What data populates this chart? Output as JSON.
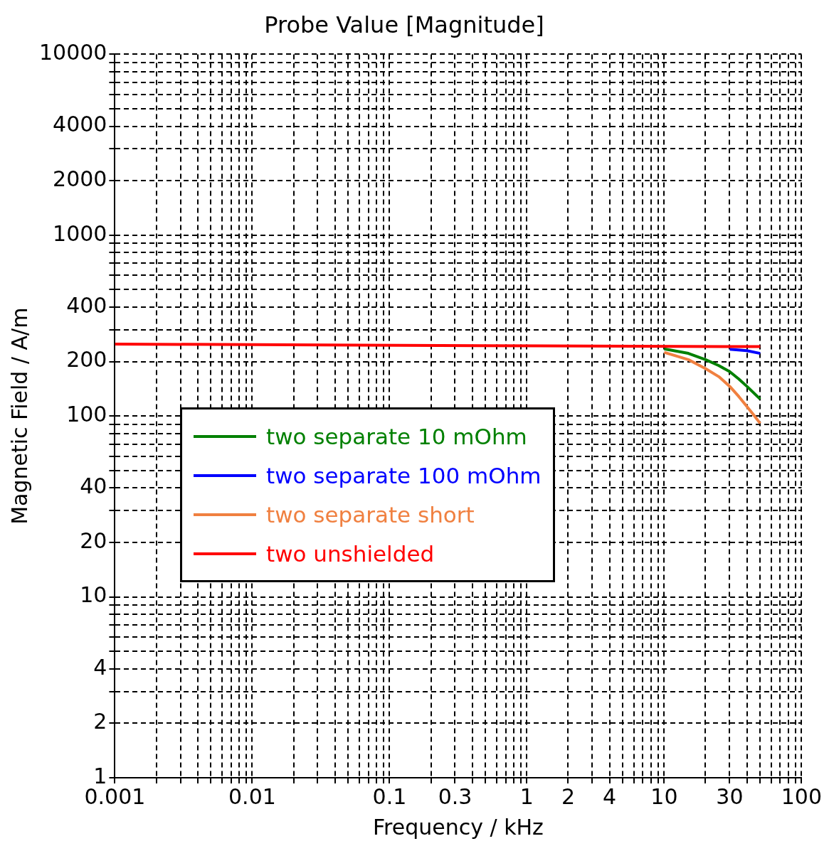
{
  "chart_data": {
    "type": "line",
    "title": "Probe Value [Magnitude]",
    "xlabel": "Frequency / kHz",
    "ylabel": "Magnetic Field / A/m",
    "log": "xy",
    "grid": true,
    "line_style": "solid",
    "marker": "none",
    "legend": "left",
    "xlim": [
      0.001,
      100
    ],
    "ylim": [
      1,
      10000
    ],
    "xticks": [
      0.001,
      {
        "value": 0.002,
        "label": null
      },
      {
        "value": 0.003,
        "label": null
      },
      {
        "value": 0.004,
        "label": null
      },
      {
        "value": 0.005,
        "label": null
      },
      {
        "value": 0.006,
        "label": null
      },
      {
        "value": 0.007,
        "label": null
      },
      {
        "value": 0.008,
        "label": null
      },
      {
        "value": 0.009,
        "label": null
      },
      0.01,
      {
        "value": 0.02,
        "label": null
      },
      {
        "value": 0.03,
        "label": null
      },
      {
        "value": 0.04,
        "label": null
      },
      {
        "value": 0.05,
        "label": null
      },
      {
        "value": 0.06,
        "label": null
      },
      {
        "value": 0.07,
        "label": null
      },
      {
        "value": 0.08,
        "label": null
      },
      {
        "value": 0.09,
        "label": null
      },
      0.1,
      {
        "value": 0.2,
        "label": null
      },
      0.3,
      {
        "value": 0.4,
        "label": null
      },
      {
        "value": 0.5,
        "label": null
      },
      {
        "value": 0.6,
        "label": null
      },
      {
        "value": 0.7,
        "label": null
      },
      {
        "value": 0.8,
        "label": null
      },
      {
        "value": 0.9,
        "label": null
      },
      1,
      2,
      {
        "value": 3,
        "label": null
      },
      4,
      {
        "value": 5,
        "label": null
      },
      {
        "value": 6,
        "label": null
      },
      {
        "value": 7,
        "label": null
      },
      {
        "value": 8,
        "label": null
      },
      {
        "value": 9,
        "label": null
      },
      10,
      {
        "value": 20,
        "label": null
      },
      30,
      {
        "value": 40,
        "label": null
      },
      {
        "value": 50,
        "label": null
      },
      {
        "value": 60,
        "label": null
      },
      {
        "value": 70,
        "label": null
      },
      {
        "value": 80,
        "label": null
      },
      {
        "value": 90,
        "label": null
      },
      100
    ],
    "yticks": [
      1,
      2,
      {
        "value": 3,
        "label": null
      },
      4,
      {
        "value": 5,
        "label": null
      },
      {
        "value": 6,
        "label": null
      },
      {
        "value": 7,
        "label": null
      },
      {
        "value": 8,
        "label": null
      },
      {
        "value": 9,
        "label": null
      },
      10,
      20,
      {
        "value": 30,
        "label": null
      },
      40,
      {
        "value": 50,
        "label": null
      },
      {
        "value": 60,
        "label": null
      },
      {
        "value": 70,
        "label": null
      },
      {
        "value": 80,
        "label": null
      },
      {
        "value": 90,
        "label": null
      },
      100,
      200,
      {
        "value": 300,
        "label": null
      },
      400,
      {
        "value": 500,
        "label": null
      },
      {
        "value": 600,
        "label": null
      },
      {
        "value": 700,
        "label": null
      },
      {
        "value": 800,
        "label": null
      },
      {
        "value": 900,
        "label": null
      },
      1000,
      2000,
      {
        "value": 3000,
        "label": null
      },
      4000,
      {
        "value": 5000,
        "label": null
      },
      {
        "value": 6000,
        "label": null
      },
      {
        "value": 7000,
        "label": null
      },
      {
        "value": 8000,
        "label": null
      },
      {
        "value": 9000,
        "label": null
      },
      10000
    ],
    "series": [
      {
        "name": "two separate 10 mOhm",
        "color": "#008000",
        "x": [
          10,
          15,
          20,
          25,
          30,
          35,
          40,
          45,
          50
        ],
        "values": [
          235,
          222,
          205,
          190,
          176,
          160,
          146,
          134,
          124
        ]
      },
      {
        "name": "two separate 100 mOhm",
        "color": "#0000ff",
        "x": [
          30,
          40,
          50
        ],
        "values": [
          234,
          230,
          222
        ]
      },
      {
        "name": "two separate short",
        "color": "#f08040",
        "x": [
          10,
          15,
          20,
          25,
          30,
          35,
          40,
          45,
          50
        ],
        "values": [
          225,
          205,
          183,
          165,
          146,
          128,
          113,
          101,
          91
        ]
      },
      {
        "name": "two unshielded",
        "color": "#ff0000",
        "x": [
          0.001,
          0.45,
          50
        ],
        "values": [
          250,
          245,
          242
        ]
      }
    ]
  }
}
